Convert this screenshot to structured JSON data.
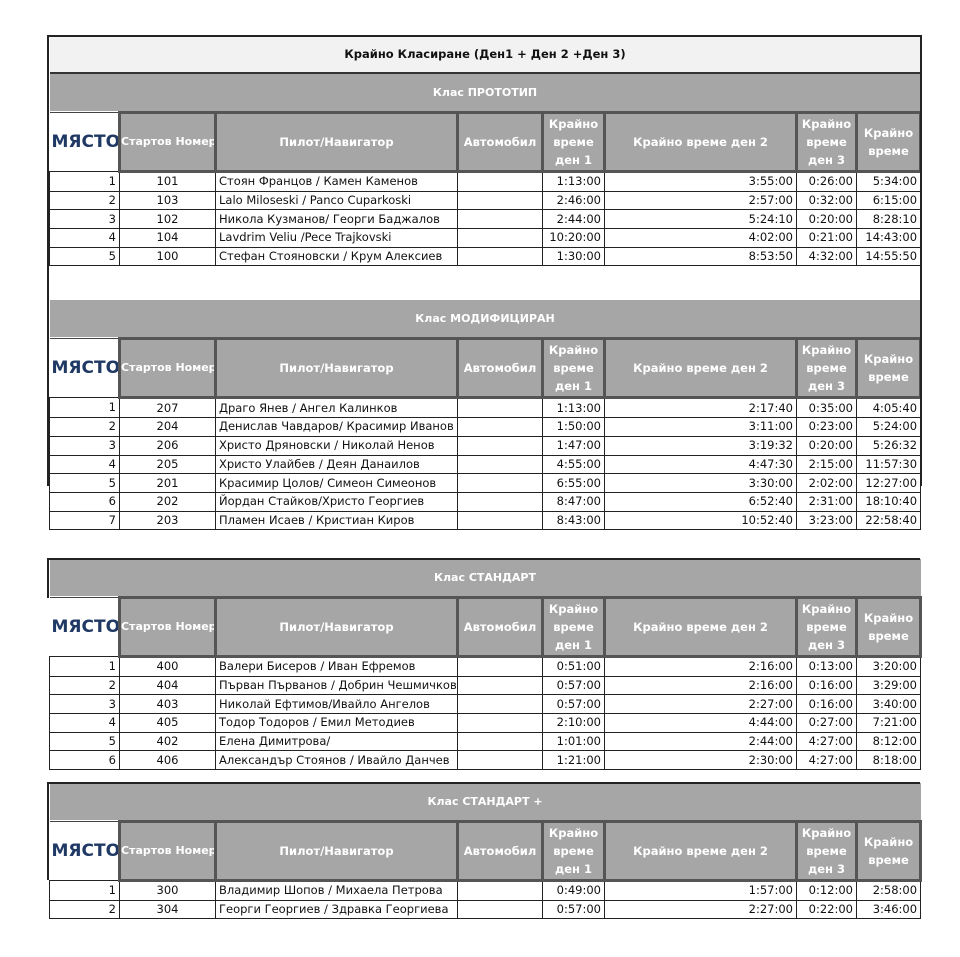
{
  "title": "Крайно Класиране (Ден1 + Ден 2 +Ден 3)",
  "columns": {
    "place": "МЯСТО:",
    "start_number": "Стартов Номер",
    "pilot": "Пилот/Навигатор",
    "car": "Автомобил",
    "day1": "Крайно време ден 1",
    "day2": "Крайно време ден 2",
    "day3": "Крайно време ден 3",
    "total": "Крайно време"
  },
  "classes": [
    {
      "label": "Клас  ПРОТОТИП",
      "rows": [
        {
          "place": "1",
          "number": "101",
          "pilot": "Стоян Францов / Камен Каменов",
          "car": "",
          "day1": "1:13:00",
          "day2": "3:55:00",
          "day3": "0:26:00",
          "total": "5:34:00"
        },
        {
          "place": "2",
          "number": "103",
          "pilot": "Lalo Miloseski / Panco Cuparkoski",
          "car": "",
          "day1": "2:46:00",
          "day2": "2:57:00",
          "day3": "0:32:00",
          "total": "6:15:00"
        },
        {
          "place": "3",
          "number": "102",
          "pilot": "Никола Кузманов/ Георги Баджалов",
          "car": "",
          "day1": "2:44:00",
          "day2": "5:24:10",
          "day3": "0:20:00",
          "total": "8:28:10"
        },
        {
          "place": "4",
          "number": "104",
          "pilot": "Lavdrim Veliu /Pece Trajkovski",
          "car": "",
          "day1": "10:20:00",
          "day2": "4:02:00",
          "day3": "0:21:00",
          "total": "14:43:00"
        },
        {
          "place": "5",
          "number": "100",
          "pilot": "Стефан Стояновски / Крум Алексиев",
          "car": "",
          "day1": "1:30:00",
          "day2": "8:53:50",
          "day3": "4:32:00",
          "total": "14:55:50"
        }
      ]
    },
    {
      "label": "Клас  МОДИФИЦИРАН",
      "rows": [
        {
          "place": "1",
          "number": "207",
          "pilot": "Драго Янев / Ангел Калинков",
          "car": "",
          "day1": "1:13:00",
          "day2": "2:17:40",
          "day3": "0:35:00",
          "total": "4:05:40"
        },
        {
          "place": "2",
          "number": "204",
          "pilot": "Денислав Чавдаров/ Красимир Иванов",
          "car": "",
          "day1": "1:50:00",
          "day2": "3:11:00",
          "day3": "0:23:00",
          "total": "5:24:00"
        },
        {
          "place": "3",
          "number": "206",
          "pilot": "Христо Дряновски / Николай Ненов",
          "car": "",
          "day1": "1:47:00",
          "day2": "3:19:32",
          "day3": "0:20:00",
          "total": "5:26:32"
        },
        {
          "place": "4",
          "number": "205",
          "pilot": "Христо Улайбев / Деян Данаилов",
          "car": "",
          "day1": "4:55:00",
          "day2": "4:47:30",
          "day3": "2:15:00",
          "total": "11:57:30"
        },
        {
          "place": "5",
          "number": "201",
          "pilot": "Красимир Цолов/ Симеон Симеонов",
          "car": "",
          "day1": "6:55:00",
          "day2": "3:30:00",
          "day3": "2:02:00",
          "total": "12:27:00"
        },
        {
          "place": "6",
          "number": "202",
          "pilot": "Йордан Стайков/Христо Георгиев",
          "car": "",
          "day1": "8:47:00",
          "day2": "6:52:40",
          "day3": "2:31:00",
          "total": "18:10:40"
        },
        {
          "place": "7",
          "number": "203",
          "pilot": "Пламен Исаев / Кристиан Киров",
          "car": "",
          "day1": "8:43:00",
          "day2": "10:52:40",
          "day3": "3:23:00",
          "total": "22:58:40"
        }
      ]
    },
    {
      "label": "Клас  СТАНДАРТ",
      "rows": [
        {
          "place": "1",
          "number": "400",
          "pilot": "Валери Бисеров / Иван Ефремов",
          "car": "",
          "day1": "0:51:00",
          "day2": "2:16:00",
          "day3": "0:13:00",
          "total": "3:20:00"
        },
        {
          "place": "2",
          "number": "404",
          "pilot": "Първан Първанов / Добрин Чешмичков",
          "car": "",
          "day1": "0:57:00",
          "day2": "2:16:00",
          "day3": "0:16:00",
          "total": "3:29:00"
        },
        {
          "place": "3",
          "number": "403",
          "pilot": "Николай Ефтимов/Ивайло Ангелов",
          "car": "",
          "day1": "0:57:00",
          "day2": "2:27:00",
          "day3": "0:16:00",
          "total": "3:40:00"
        },
        {
          "place": "4",
          "number": "405",
          "pilot": "Тодор Тодоров / Емил Методиев",
          "car": "",
          "day1": "2:10:00",
          "day2": "4:44:00",
          "day3": "0:27:00",
          "total": "7:21:00"
        },
        {
          "place": "5",
          "number": "402",
          "pilot": "Елена Димитрова/",
          "car": "",
          "day1": "1:01:00",
          "day2": "2:44:00",
          "day3": "4:27:00",
          "total": "8:12:00"
        },
        {
          "place": "6",
          "number": "406",
          "pilot": "Александър Стоянов / Ивайло Данчев",
          "car": "",
          "day1": "1:21:00",
          "day2": "2:30:00",
          "day3": "4:27:00",
          "total": "8:18:00"
        }
      ]
    },
    {
      "label": "Клас  СТАНДАРТ +",
      "rows": [
        {
          "place": "1",
          "number": "300",
          "pilot": "Владимир Шопов / Михаела Петрова",
          "car": "",
          "day1": "0:49:00",
          "day2": "1:57:00",
          "day3": "0:12:00",
          "total": "2:58:00"
        },
        {
          "place": "2",
          "number": "304",
          "pilot": "Георги Георгиев / Здравка Георгиева",
          "car": "",
          "day1": "0:57:00",
          "day2": "2:27:00",
          "day3": "0:22:00",
          "total": "3:46:00"
        }
      ]
    }
  ]
}
